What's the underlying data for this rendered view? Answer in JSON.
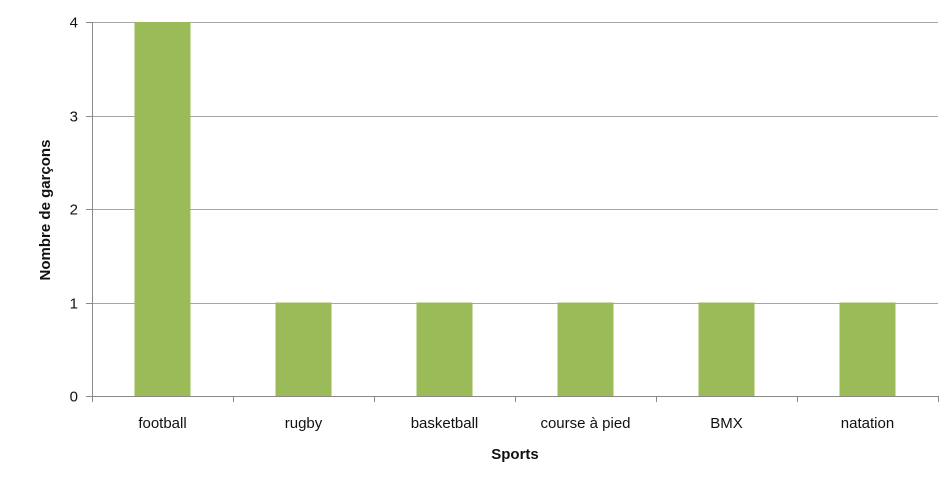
{
  "chart_data": {
    "type": "bar",
    "categories": [
      "football",
      "rugby",
      "basketball",
      "course à pied",
      "BMX",
      "natation"
    ],
    "values": [
      4,
      1,
      1,
      1,
      1,
      1
    ],
    "xlabel": "Sports",
    "ylabel": "Nombre de garçons",
    "ylim": [
      0,
      4
    ],
    "yticks": [
      "0",
      "1",
      "2",
      "3",
      "4"
    ],
    "grid": true,
    "legend": "none",
    "bar_color": "#9bbb59",
    "grid_color": "#a6a6a6",
    "axis_color": "#888888"
  }
}
